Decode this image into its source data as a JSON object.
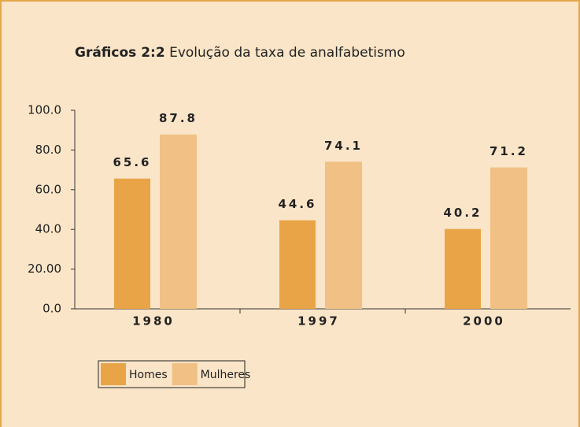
{
  "chart_data": {
    "type": "bar",
    "figure_label": "Gráficos 2:2",
    "title": "Evolução da taxa de analfabetismo",
    "categories": [
      "1980",
      "1997",
      "2000"
    ],
    "series": [
      {
        "name": "Homes",
        "color": "#e8a446",
        "values": [
          65.6,
          44.6,
          40.2
        ]
      },
      {
        "name": "Mulheres",
        "color": "#f0c084",
        "values": [
          87.8,
          74.1,
          71.2
        ]
      }
    ],
    "ylim": [
      0,
      100
    ],
    "yticks": [
      {
        "value": 0,
        "label": "0.0"
      },
      {
        "value": 20,
        "label": "20.00"
      },
      {
        "value": 40,
        "label": "40.0"
      },
      {
        "value": 60,
        "label": "60.0"
      },
      {
        "value": 80,
        "label": "80.0"
      },
      {
        "value": 100,
        "label": "100.0"
      }
    ],
    "grid": false,
    "legend": "bottom-left"
  }
}
